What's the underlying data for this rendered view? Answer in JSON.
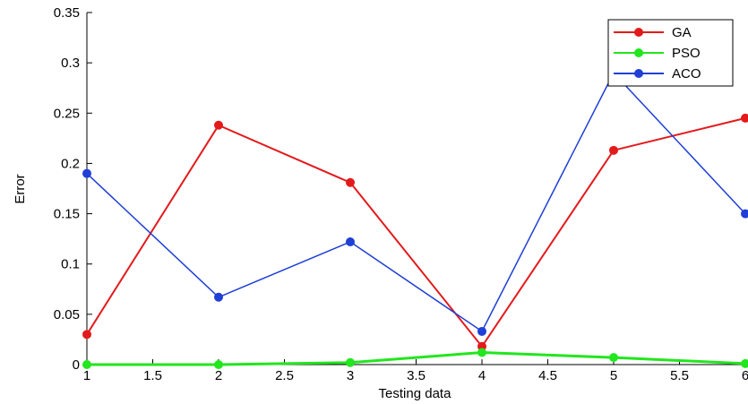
{
  "chart_data": {
    "type": "line",
    "title": "",
    "xlabel": "Testing data",
    "ylabel": "Error",
    "xlim": [
      1,
      6
    ],
    "ylim": [
      0,
      0.35
    ],
    "x": [
      1,
      2,
      3,
      4,
      5,
      6
    ],
    "xticks": [
      "1",
      "1.5",
      "2",
      "2.5",
      "3",
      "3.5",
      "4",
      "4.5",
      "5",
      "5.5",
      "6"
    ],
    "yticks": [
      "0",
      "0.05",
      "0.1",
      "0.15",
      "0.2",
      "0.25",
      "0.3",
      "0.35"
    ],
    "grid": false,
    "legend": "top-right",
    "series": [
      {
        "name": "GA",
        "color": "#e31a1c",
        "values": [
          0.03,
          0.238,
          0.181,
          0.018,
          0.213,
          0.245
        ]
      },
      {
        "name": "PSO",
        "color": "#22e61e",
        "values": [
          0.0,
          0.0,
          0.002,
          0.012,
          0.007,
          0.001
        ]
      },
      {
        "name": "ACO",
        "color": "#1f3fd6",
        "values": [
          0.19,
          0.067,
          0.122,
          0.033,
          0.29,
          0.15
        ]
      }
    ]
  }
}
